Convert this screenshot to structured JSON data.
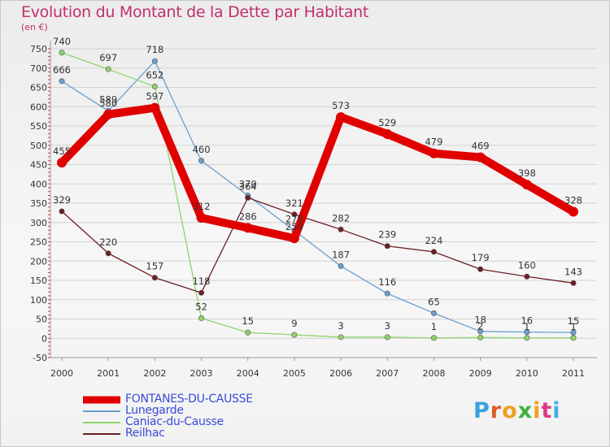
{
  "chart_data": {
    "type": "line",
    "title": "Evolution du Montant de la Dette par Habitant",
    "subtitle": "(en €)",
    "x": [
      "2000",
      "2001",
      "2002",
      "2003",
      "2004",
      "2005",
      "2006",
      "2007",
      "2008",
      "2009",
      "2010",
      "2011"
    ],
    "yticks": [
      "-50",
      "0",
      "50",
      "100",
      "150",
      "200",
      "250",
      "300",
      "350",
      "400",
      "450",
      "500",
      "550",
      "600",
      "650",
      "700",
      "750"
    ],
    "ylim": [
      -50,
      750
    ],
    "grid": true,
    "legend_position": "bottom-left",
    "series": [
      {
        "name": "FONTANES-DU-CAUSSE",
        "color": "#e00000",
        "values": [
          455,
          580,
          597,
          312,
          286,
          259,
          573,
          529,
          479,
          469,
          398,
          328
        ],
        "labels": [
          "455",
          "580",
          "597",
          "312",
          "286",
          "259",
          "573",
          "529",
          "479",
          "469",
          "398",
          "328"
        ]
      },
      {
        "name": "Lunegarde",
        "color": "#6b9fd0",
        "values": [
          666,
          589,
          718,
          460,
          370,
          279,
          187,
          116,
          65,
          18,
          16,
          15
        ],
        "labels": [
          "666",
          "589",
          "718",
          "460",
          "370",
          "279",
          "187",
          "116",
          "65",
          "18",
          "16",
          "15"
        ]
      },
      {
        "name": "Caniac-du-Causse",
        "color": "#8fd46a",
        "values": [
          740,
          697,
          652,
          52,
          15,
          9,
          3,
          3,
          1,
          2,
          1,
          1
        ],
        "labels": [
          "740",
          "697",
          "652",
          "52",
          "15",
          "9",
          "3",
          "3",
          "1",
          "2",
          "1",
          "1"
        ]
      },
      {
        "name": "Reilhac",
        "color": "#6e1e26",
        "values": [
          329,
          220,
          157,
          118,
          364,
          321,
          282,
          239,
          224,
          179,
          160,
          143
        ],
        "labels": [
          "329",
          "220",
          "157",
          "118",
          "364",
          "321",
          "282",
          "239",
          "224",
          "179",
          "160",
          "143"
        ]
      }
    ]
  },
  "logo": {
    "letters": [
      "P",
      "r",
      "o",
      "x",
      "i",
      "t",
      "i"
    ],
    "colors": [
      "#3aa0e0",
      "#e05a2a",
      "#f0a020",
      "#40b040",
      "#f0a020",
      "#e03a8a",
      "#40b0e0"
    ]
  }
}
